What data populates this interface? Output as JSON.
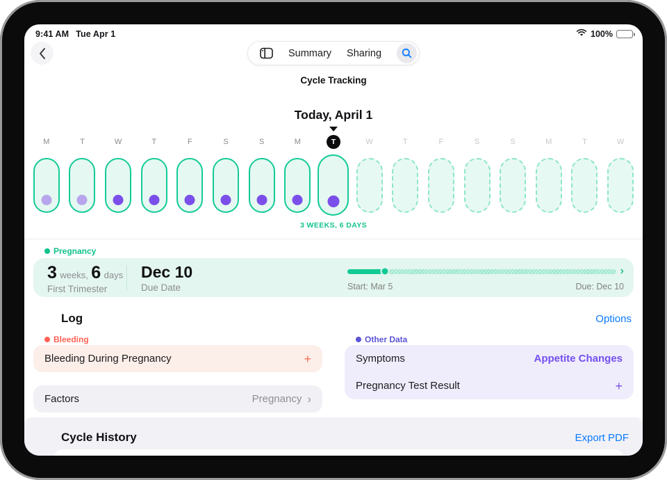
{
  "status_bar": {
    "time": "9:41 AM",
    "date": "Tue Apr 1",
    "battery": "100%"
  },
  "nav": {
    "summary": "Summary",
    "sharing": "Sharing"
  },
  "page": {
    "title": "Cycle Tracking",
    "today_label": "Today, April 1"
  },
  "icons": {
    "back_chevron": "‹",
    "chevron_right": "›",
    "plus": "+"
  },
  "timeline": {
    "duration_label": "3 WEEKS, 6 DAYS",
    "columns": [
      {
        "letter": "M",
        "state": "past",
        "capsule": "solid",
        "dot": "light"
      },
      {
        "letter": "T",
        "state": "past",
        "capsule": "solid",
        "dot": "light"
      },
      {
        "letter": "W",
        "state": "past",
        "capsule": "solid",
        "dot": "dark"
      },
      {
        "letter": "T",
        "state": "past",
        "capsule": "solid",
        "dot": "dark"
      },
      {
        "letter": "F",
        "state": "past",
        "capsule": "solid",
        "dot": "dark"
      },
      {
        "letter": "S",
        "state": "past",
        "capsule": "solid",
        "dot": "dark"
      },
      {
        "letter": "S",
        "state": "past",
        "capsule": "solid",
        "dot": "dark"
      },
      {
        "letter": "M",
        "state": "past",
        "capsule": "solid",
        "dot": "dark"
      },
      {
        "letter": "T",
        "state": "today",
        "capsule": "today",
        "dot": "dark"
      },
      {
        "letter": "W",
        "state": "future",
        "capsule": "dashed",
        "dot": "none"
      },
      {
        "letter": "T",
        "state": "future",
        "capsule": "dashed",
        "dot": "none"
      },
      {
        "letter": "F",
        "state": "future",
        "capsule": "dashed",
        "dot": "none"
      },
      {
        "letter": "S",
        "state": "future",
        "capsule": "dashed",
        "dot": "none"
      },
      {
        "letter": "S",
        "state": "future",
        "capsule": "dashed",
        "dot": "none"
      },
      {
        "letter": "M",
        "state": "future",
        "capsule": "dashed",
        "dot": "none"
      },
      {
        "letter": "T",
        "state": "future",
        "capsule": "dashed",
        "dot": "none"
      },
      {
        "letter": "W",
        "state": "future",
        "capsule": "dashed",
        "dot": "none"
      }
    ]
  },
  "pregnancy": {
    "section_label": "Pregnancy",
    "weeks_value": "3",
    "weeks_unit": "weeks,",
    "days_value": "6",
    "days_unit": "days",
    "trimester": "First Trimester",
    "due_value": "Dec 10",
    "due_label": "Due Date",
    "progress": {
      "percent": 14,
      "start_label": "Start: Mar 5",
      "due_label": "Due: Dec 10"
    }
  },
  "log": {
    "title": "Log",
    "options_label": "Options",
    "bleeding": {
      "section_label": "Bleeding",
      "row_label": "Bleeding During Pregnancy"
    },
    "factors": {
      "row_label": "Factors",
      "value": "Pregnancy"
    },
    "other_data": {
      "section_label": "Other Data",
      "symptoms_label": "Symptoms",
      "symptoms_value": "Appetite Changes",
      "test_label": "Pregnancy Test Result"
    }
  },
  "cycle_history": {
    "title": "Cycle History",
    "export_label": "Export PDF"
  },
  "colors": {
    "teal": "#14cb97",
    "mint_fill": "#e5f8f1",
    "purple": "#7b4fe9",
    "light_purple": "#b7a6ec",
    "link_blue": "#0a7aff",
    "coral": "#ff6255",
    "lavender_card": "#efedfc",
    "mint_card": "#e3f6ef"
  }
}
